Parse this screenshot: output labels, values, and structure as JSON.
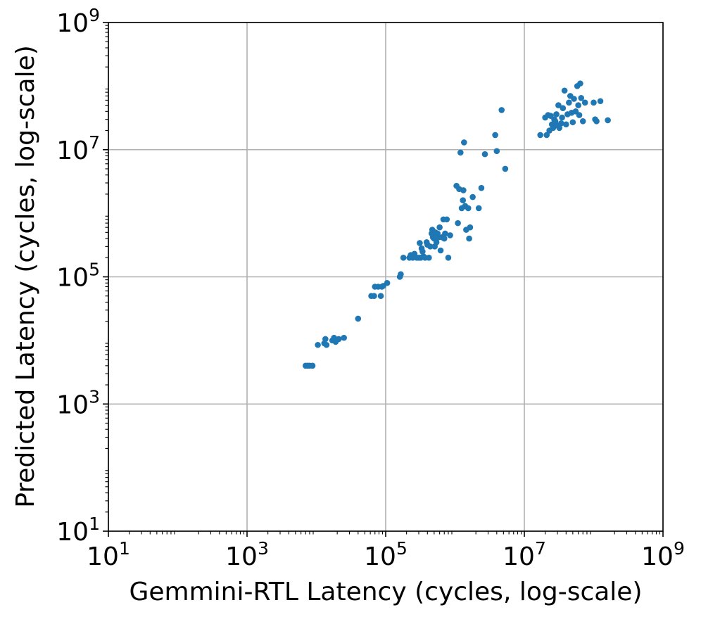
{
  "chart_data": {
    "type": "scatter",
    "xlabel": "Gemmini-RTL Latency (cycles, log-scale)",
    "ylabel": "Predicted Latency (cycles, log-scale)",
    "x_scale": "log",
    "y_scale": "log",
    "xlim": [
      10,
      1000000000
    ],
    "ylim": [
      10,
      1000000000
    ],
    "major_ticks": [
      {
        "base": "10",
        "exp": "1"
      },
      {
        "base": "10",
        "exp": "3"
      },
      {
        "base": "10",
        "exp": "5"
      },
      {
        "base": "10",
        "exp": "7"
      },
      {
        "base": "10",
        "exp": "9"
      }
    ],
    "major_tick_values": [
      10,
      1000,
      100000,
      10000000,
      1000000000
    ],
    "grid": true,
    "marker_color": "#1f77b4",
    "series": [
      {
        "points": [
          [
            7000,
            4000
          ],
          [
            7500,
            4000
          ],
          [
            8000,
            4000
          ],
          [
            8800,
            4000
          ],
          [
            10500,
            8500
          ],
          [
            13000,
            9000
          ],
          [
            13500,
            10500
          ],
          [
            14000,
            8500
          ],
          [
            17000,
            10000
          ],
          [
            18000,
            11000
          ],
          [
            19000,
            9500
          ],
          [
            21000,
            10500
          ],
          [
            25000,
            11000
          ],
          [
            40000,
            22000
          ],
          [
            62000,
            50000
          ],
          [
            68000,
            50000
          ],
          [
            70000,
            70000
          ],
          [
            78000,
            70000
          ],
          [
            85000,
            50000
          ],
          [
            88000,
            70000
          ],
          [
            92000,
            72000
          ],
          [
            105000,
            80000
          ],
          [
            160000,
            100000
          ],
          [
            165000,
            110000
          ],
          [
            180000,
            200000
          ],
          [
            220000,
            200000
          ],
          [
            230000,
            220000
          ],
          [
            245000,
            200000
          ],
          [
            260000,
            230000
          ],
          [
            280000,
            200000
          ],
          [
            300000,
            200000
          ],
          [
            310000,
            340000
          ],
          [
            320000,
            200000
          ],
          [
            330000,
            280000
          ],
          [
            340000,
            250000
          ],
          [
            350000,
            210000
          ],
          [
            370000,
            200000
          ],
          [
            390000,
            350000
          ],
          [
            400000,
            320000
          ],
          [
            420000,
            200000
          ],
          [
            440000,
            300000
          ],
          [
            460000,
            480000
          ],
          [
            470000,
            550000
          ],
          [
            480000,
            420000
          ],
          [
            500000,
            400000
          ],
          [
            510000,
            300000
          ],
          [
            520000,
            500000
          ],
          [
            540000,
            350000
          ],
          [
            560000,
            480000
          ],
          [
            580000,
            420000
          ],
          [
            600000,
            600000
          ],
          [
            620000,
            260000
          ],
          [
            650000,
            420000
          ],
          [
            680000,
            800000
          ],
          [
            700000,
            400000
          ],
          [
            720000,
            480000
          ],
          [
            760000,
            800000
          ],
          [
            800000,
            200000
          ],
          [
            850000,
            450000
          ],
          [
            1050000,
            2700000
          ],
          [
            1100000,
            700000
          ],
          [
            1150000,
            2400000
          ],
          [
            1200000,
            9000000
          ],
          [
            1250000,
            1200000
          ],
          [
            1300000,
            1600000
          ],
          [
            1320000,
            2300000
          ],
          [
            1350000,
            13000000
          ],
          [
            1400000,
            1300000
          ],
          [
            1450000,
            550000
          ],
          [
            1550000,
            1200000
          ],
          [
            1600000,
            400000
          ],
          [
            1650000,
            600000
          ],
          [
            1800000,
            1800000
          ],
          [
            2200000,
            1200000
          ],
          [
            2400000,
            2500000
          ],
          [
            2700000,
            8500000
          ],
          [
            3800000,
            17000000
          ],
          [
            4000000,
            9500000
          ],
          [
            4700000,
            42000000
          ],
          [
            5300000,
            5000000
          ],
          [
            17000000,
            17000000
          ],
          [
            20000000,
            32000000
          ],
          [
            21000000,
            17000000
          ],
          [
            22000000,
            35000000
          ],
          [
            23000000,
            20000000
          ],
          [
            24000000,
            34000000
          ],
          [
            25000000,
            25000000
          ],
          [
            26000000,
            22000000
          ],
          [
            27000000,
            30000000
          ],
          [
            28000000,
            28000000
          ],
          [
            29000000,
            36000000
          ],
          [
            30000000,
            24000000
          ],
          [
            31000000,
            50000000
          ],
          [
            32000000,
            22000000
          ],
          [
            34000000,
            26000000
          ],
          [
            35000000,
            32000000
          ],
          [
            36000000,
            45000000
          ],
          [
            38000000,
            85000000
          ],
          [
            40000000,
            25000000
          ],
          [
            42000000,
            36000000
          ],
          [
            44000000,
            55000000
          ],
          [
            46000000,
            70000000
          ],
          [
            48000000,
            38000000
          ],
          [
            50000000,
            27000000
          ],
          [
            52000000,
            63000000
          ],
          [
            55000000,
            40000000
          ],
          [
            58000000,
            100000000
          ],
          [
            60000000,
            50000000
          ],
          [
            62000000,
            35000000
          ],
          [
            64000000,
            110000000
          ],
          [
            66000000,
            65000000
          ],
          [
            70000000,
            28000000
          ],
          [
            75000000,
            55000000
          ],
          [
            100000000,
            55000000
          ],
          [
            105000000,
            30000000
          ],
          [
            110000000,
            28000000
          ],
          [
            125000000,
            58000000
          ],
          [
            160000000,
            29000000
          ]
        ]
      }
    ]
  }
}
